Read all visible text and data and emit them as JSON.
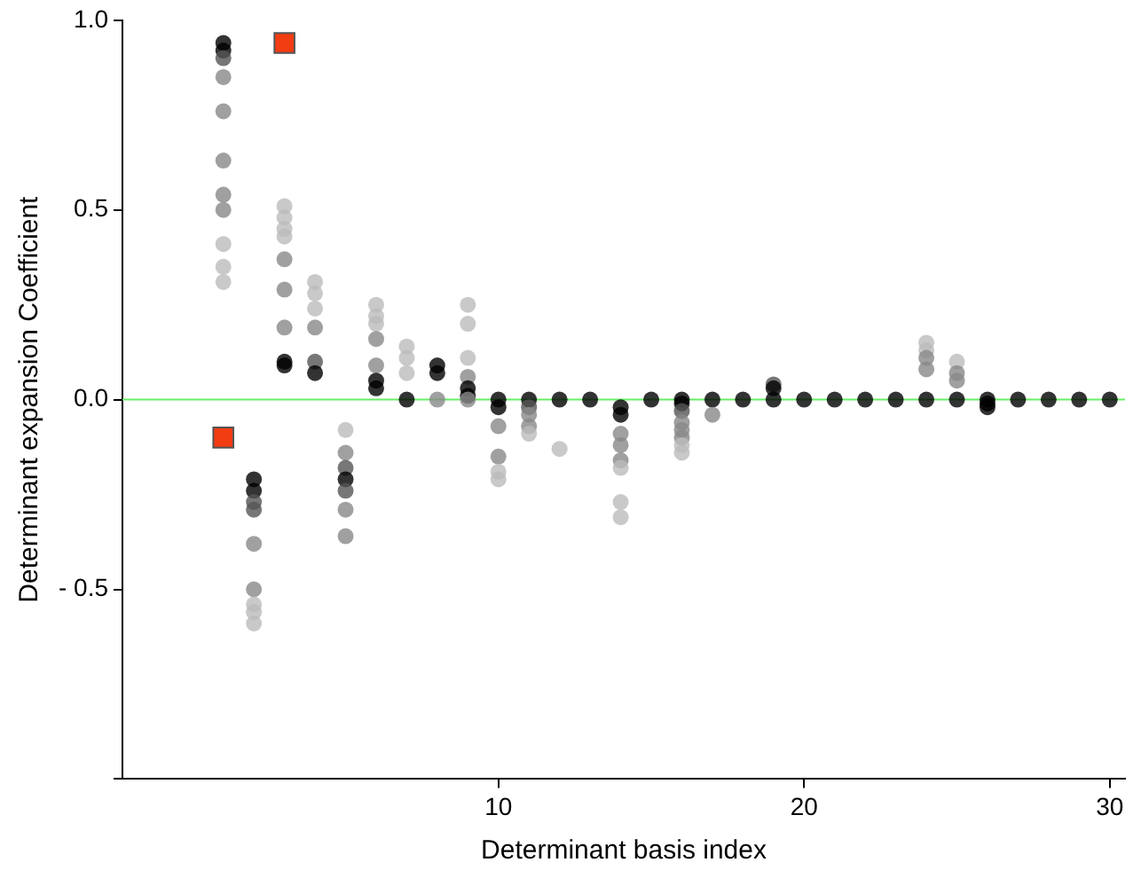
{
  "chart_data": {
    "type": "scatter",
    "xlabel": "Determinant basis index",
    "ylabel": "Determinant expansion Coefficient",
    "xlim": [
      -2.3,
      30.5
    ],
    "ylim": [
      -1,
      1
    ],
    "xticks": [
      10,
      20,
      30
    ],
    "yticks": [
      {
        "value": 1,
        "label": "1.0"
      },
      {
        "value": 0.5,
        "label": "0.5"
      },
      {
        "value": 0,
        "label": "0.0"
      },
      {
        "value": -0.5,
        "label": "- 0.5"
      },
      {
        "value": -1,
        "label": null
      }
    ],
    "grid": false,
    "legend": false,
    "marker": "circle",
    "ref_lines": [
      {
        "axis": "y",
        "value": 0,
        "color": "#66ee66"
      }
    ],
    "series": [
      {
        "x": [
          1,
          1,
          1,
          1,
          1,
          1,
          1,
          1,
          1,
          1,
          1,
          2,
          2,
          2,
          2,
          2,
          2,
          2,
          2,
          2,
          3,
          3,
          3,
          3,
          3,
          3,
          3,
          3,
          3,
          4,
          4,
          4,
          4,
          4,
          4,
          5,
          5,
          5,
          5,
          5,
          5,
          5,
          6,
          6,
          6,
          6,
          6,
          6,
          6,
          7,
          7,
          7,
          7,
          8,
          8,
          8,
          9,
          9,
          9,
          9,
          9,
          9,
          9,
          10,
          10,
          10,
          10,
          10,
          10,
          11,
          11,
          11,
          11,
          11,
          12,
          12,
          13,
          14,
          14,
          14,
          14,
          14,
          14,
          14,
          14,
          15,
          16,
          16,
          16,
          16,
          16,
          16,
          16,
          16,
          17,
          17,
          18,
          19,
          19,
          19,
          20,
          21,
          22,
          23,
          24,
          24,
          24,
          24,
          24,
          25,
          25,
          25,
          25,
          26,
          26,
          26,
          27,
          28,
          29,
          30
        ],
        "values": [
          0.94,
          0.92,
          0.9,
          0.85,
          0.76,
          0.63,
          0.54,
          0.5,
          0.41,
          0.35,
          0.31,
          -0.21,
          -0.24,
          -0.27,
          -0.29,
          -0.38,
          -0.5,
          -0.54,
          -0.56,
          -0.59,
          0.51,
          0.48,
          0.45,
          0.43,
          0.37,
          0.29,
          0.19,
          0.1,
          0.09,
          0.31,
          0.28,
          0.24,
          0.19,
          0.1,
          0.07,
          -0.08,
          -0.14,
          -0.18,
          -0.21,
          -0.24,
          -0.29,
          -0.36,
          0.25,
          0.22,
          0.2,
          0.16,
          0.09,
          0.05,
          0.03,
          0.14,
          0.11,
          0.07,
          0,
          0.09,
          0.07,
          0,
          0.25,
          0.2,
          0.11,
          0.06,
          0.03,
          0.01,
          0,
          0,
          -0.02,
          -0.07,
          -0.15,
          -0.19,
          -0.21,
          0,
          -0.02,
          -0.04,
          -0.07,
          -0.09,
          0,
          -0.13,
          0,
          -0.02,
          -0.04,
          -0.09,
          -0.12,
          -0.16,
          -0.18,
          -0.27,
          -0.31,
          0,
          0,
          -0.01,
          -0.03,
          -0.06,
          -0.08,
          -0.1,
          -0.12,
          -0.14,
          0,
          -0.04,
          0,
          0.04,
          0.03,
          0,
          0,
          0,
          0,
          0,
          0.15,
          0.13,
          0.11,
          0.08,
          0,
          0.1,
          0.07,
          0.05,
          0,
          0,
          -0.01,
          -0.02,
          0,
          0,
          0,
          0
        ],
        "colors": [
          "#000000",
          "#000000",
          "#555555",
          "#888888",
          "#888888",
          "#888888",
          "#888888",
          "#888888",
          "#bbbbbb",
          "#bbbbbb",
          "#bbbbbb",
          "#000000",
          "#000000",
          "#555555",
          "#555555",
          "#888888",
          "#888888",
          "#bbbbbb",
          "#bbbbbb",
          "#bbbbbb",
          "#bbbbbb",
          "#bbbbbb",
          "#bbbbbb",
          "#bbbbbb",
          "#888888",
          "#888888",
          "#888888",
          "#000000",
          "#000000",
          "#bbbbbb",
          "#bbbbbb",
          "#bbbbbb",
          "#888888",
          "#555555",
          "#000000",
          "#bbbbbb",
          "#888888",
          "#555555",
          "#000000",
          "#555555",
          "#888888",
          "#888888",
          "#bbbbbb",
          "#bbbbbb",
          "#bbbbbb",
          "#888888",
          "#888888",
          "#000000",
          "#000000",
          "#bbbbbb",
          "#bbbbbb",
          "#bbbbbb",
          "#000000",
          "#000000",
          "#000000",
          "#888888",
          "#bbbbbb",
          "#bbbbbb",
          "#bbbbbb",
          "#888888",
          "#000000",
          "#000000",
          "#888888",
          "#000000",
          "#000000",
          "#888888",
          "#888888",
          "#bbbbbb",
          "#bbbbbb",
          "#000000",
          "#555555",
          "#888888",
          "#888888",
          "#bbbbbb",
          "#000000",
          "#bbbbbb",
          "#000000",
          "#000000",
          "#000000",
          "#888888",
          "#888888",
          "#888888",
          "#bbbbbb",
          "#bbbbbb",
          "#bbbbbb",
          "#000000",
          "#000000",
          "#000000",
          "#555555",
          "#888888",
          "#888888",
          "#888888",
          "#bbbbbb",
          "#bbbbbb",
          "#000000",
          "#888888",
          "#000000",
          "#555555",
          "#000000",
          "#000000",
          "#000000",
          "#000000",
          "#000000",
          "#000000",
          "#bbbbbb",
          "#bbbbbb",
          "#888888",
          "#888888",
          "#000000",
          "#bbbbbb",
          "#888888",
          "#888888",
          "#000000",
          "#000000",
          "#000000",
          "#000000",
          "#000000",
          "#000000",
          "#000000",
          "#000000"
        ]
      },
      {
        "x": [
          1,
          3
        ],
        "values": [
          -0.1,
          0.94
        ],
        "color": "#f23c12",
        "marker": "square"
      }
    ]
  }
}
